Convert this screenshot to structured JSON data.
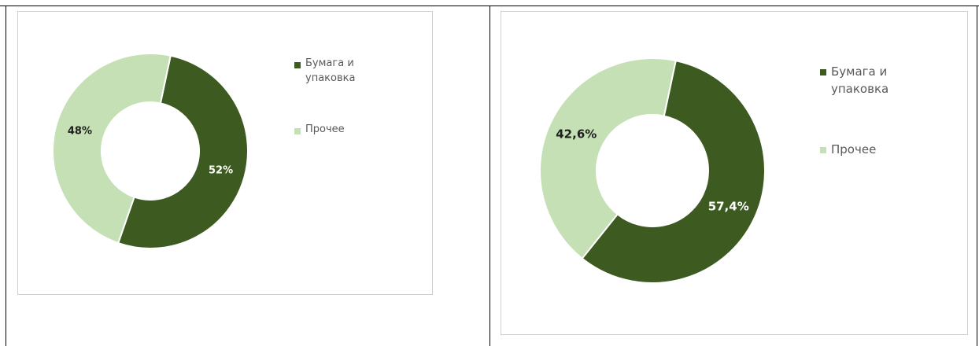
{
  "colors": {
    "paper": "#3d5a20",
    "other": "#c5e0b4",
    "label_dark": "#1f1f1f",
    "label_light": "#ffffff"
  },
  "chart_data": [
    {
      "type": "pie",
      "donut": true,
      "title": "",
      "legend_position": "right",
      "categories": [
        "Бумага и упаковка",
        "Прочее"
      ],
      "values": [
        52,
        48
      ],
      "value_labels": [
        "52%",
        "48%"
      ],
      "legend_lines": [
        [
          "Бумага и",
          "упаковка"
        ],
        [
          "Прочее"
        ]
      ]
    },
    {
      "type": "pie",
      "donut": true,
      "title": "",
      "legend_position": "right",
      "categories": [
        "Бумага и упаковка",
        "Прочее"
      ],
      "values": [
        57.4,
        42.6
      ],
      "value_labels": [
        "57,4%",
        "42,6%"
      ],
      "legend_lines": [
        [
          "Бумага и",
          "упаковка"
        ],
        [
          "Прочее"
        ]
      ]
    }
  ]
}
